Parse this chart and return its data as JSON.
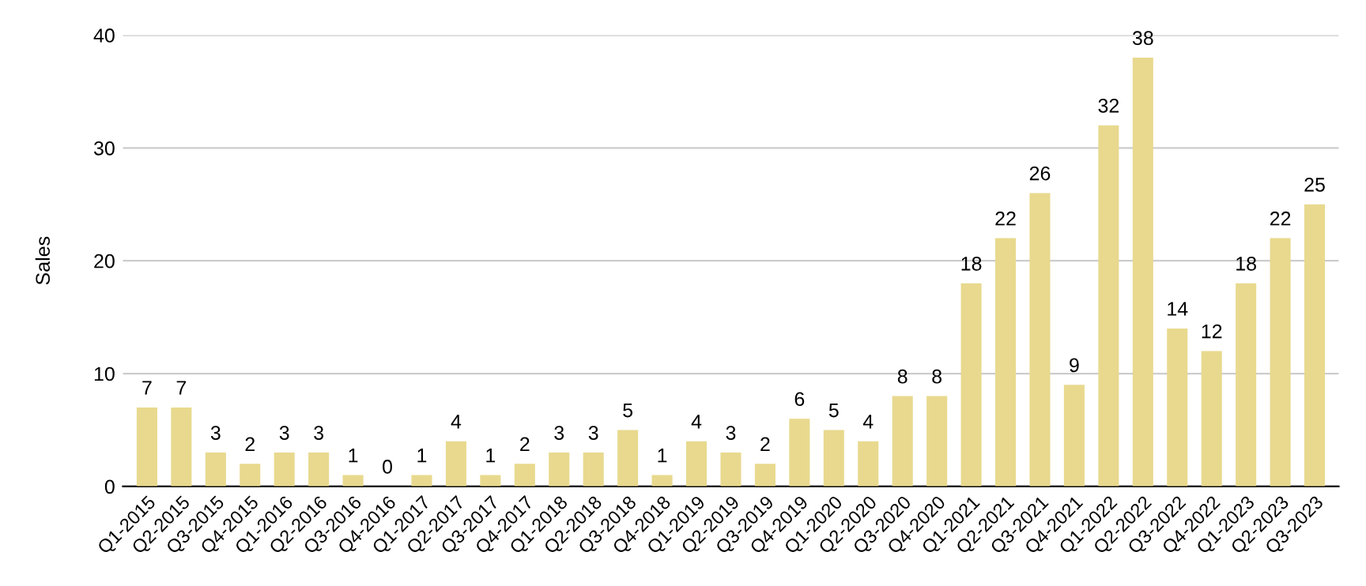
{
  "chart_data": {
    "type": "bar",
    "ylabel": "Sales",
    "categories": [
      "Q1-2015",
      "Q2-2015",
      "Q3-2015",
      "Q4-2015",
      "Q1-2016",
      "Q2-2016",
      "Q3-2016",
      "Q4-2016",
      "Q1-2017",
      "Q2-2017",
      "Q3-2017",
      "Q4-2017",
      "Q1-2018",
      "Q2-2018",
      "Q3-2018",
      "Q4-2018",
      "Q1-2019",
      "Q2-2019",
      "Q3-2019",
      "Q4-2019",
      "Q1-2020",
      "Q2-2020",
      "Q3-2020",
      "Q4-2020",
      "Q1-2021",
      "Q2-2021",
      "Q3-2021",
      "Q4-2021",
      "Q1-2022",
      "Q2-2022",
      "Q3-2022",
      "Q4-2022",
      "Q1-2023",
      "Q2-2023",
      "Q3-2023"
    ],
    "values": [
      7,
      7,
      3,
      2,
      3,
      3,
      1,
      0,
      1,
      4,
      1,
      2,
      3,
      3,
      5,
      1,
      4,
      3,
      2,
      6,
      5,
      4,
      8,
      8,
      18,
      22,
      26,
      9,
      32,
      38,
      14,
      12,
      18,
      22,
      25
    ],
    "color": "#e8d98e",
    "ylim": [
      0,
      40
    ],
    "yticks": [
      0,
      10,
      20,
      30,
      40
    ],
    "grid": "y",
    "data_labels": true
  }
}
